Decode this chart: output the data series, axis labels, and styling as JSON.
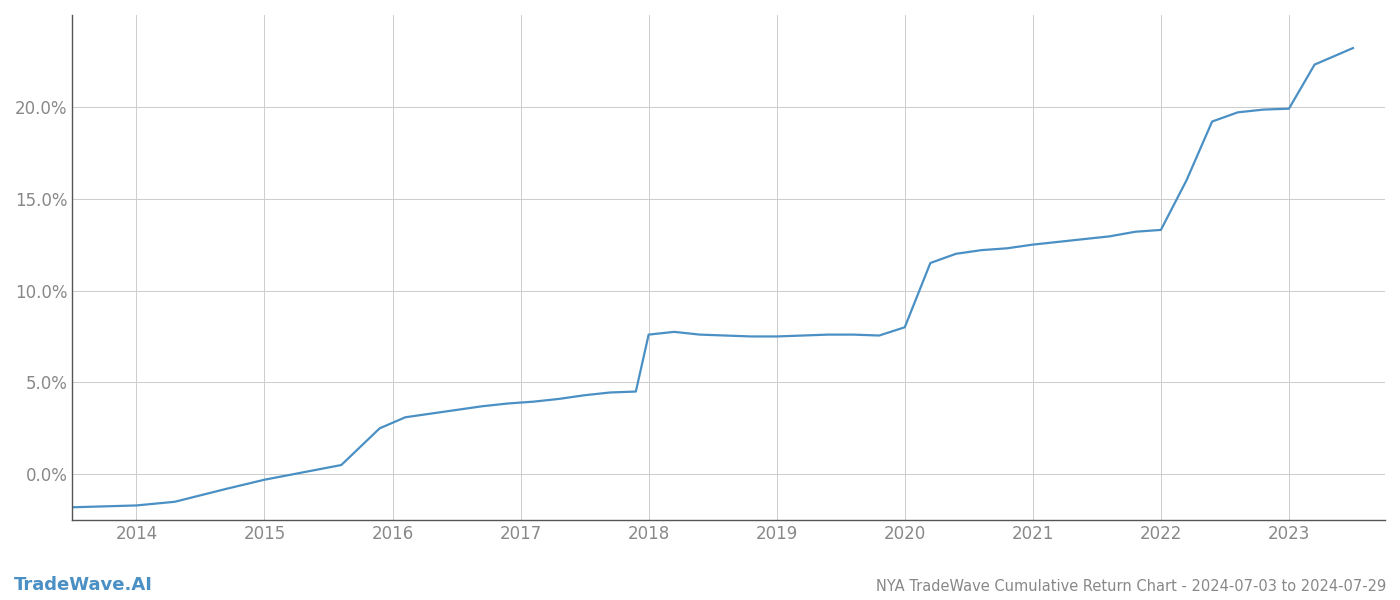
{
  "title": "NYA TradeWave Cumulative Return Chart - 2024-07-03 to 2024-07-29",
  "watermark": "TradeWave.AI",
  "line_color": "#4a90c4",
  "background_color": "#ffffff",
  "grid_color": "#cccccc",
  "x_years": [
    2014,
    2015,
    2016,
    2017,
    2018,
    2019,
    2020,
    2021,
    2022,
    2023
  ],
  "x_values": [
    2013.5,
    2014.0,
    2014.3,
    2014.7,
    2015.0,
    2015.3,
    2015.6,
    2015.9,
    2016.1,
    2016.3,
    2016.5,
    2016.7,
    2016.9,
    2017.1,
    2017.3,
    2017.5,
    2017.7,
    2017.9,
    2018.0,
    2018.2,
    2018.4,
    2018.6,
    2018.8,
    2019.0,
    2019.2,
    2019.4,
    2019.6,
    2019.8,
    2020.0,
    2020.2,
    2020.4,
    2020.6,
    2020.8,
    2021.0,
    2021.2,
    2021.4,
    2021.6,
    2021.8,
    2022.0,
    2022.2,
    2022.4,
    2022.6,
    2022.8,
    2023.0,
    2023.2,
    2023.5
  ],
  "y_values": [
    -1.8,
    -1.7,
    -1.5,
    -0.8,
    -0.3,
    0.1,
    0.5,
    2.5,
    3.1,
    3.3,
    3.5,
    3.7,
    3.85,
    3.95,
    4.1,
    4.3,
    4.45,
    4.5,
    7.6,
    7.75,
    7.6,
    7.55,
    7.5,
    7.5,
    7.55,
    7.6,
    7.6,
    7.55,
    8.0,
    11.5,
    12.0,
    12.2,
    12.3,
    12.5,
    12.65,
    12.8,
    12.95,
    13.2,
    13.3,
    16.0,
    19.2,
    19.7,
    19.85,
    19.9,
    22.3,
    23.2
  ],
  "ylim": [
    -2.5,
    25.0
  ],
  "xlim": [
    2013.5,
    2023.75
  ],
  "ytick_values": [
    0.0,
    5.0,
    10.0,
    15.0,
    20.0
  ],
  "ytick_labels": [
    "0.0%",
    "5.0%",
    "10.0%",
    "15.0%",
    "20.0%"
  ],
  "line_width": 1.6,
  "title_fontsize": 10.5,
  "tick_fontsize": 12,
  "watermark_fontsize": 13
}
